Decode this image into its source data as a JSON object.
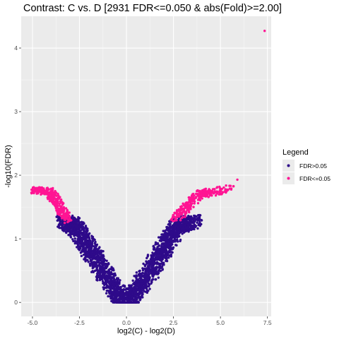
{
  "chart_data": {
    "type": "scatter",
    "title": "Contrast: C vs. D [2931 FDR<=0.050 & abs(Fold)>=2.00]",
    "xlabel": "log2(C) - log2(D)",
    "ylabel": "-log10(FDR)",
    "xlim": [
      -5.6,
      7.7
    ],
    "ylim": [
      -0.22,
      4.5
    ],
    "x_ticks": [
      -5.0,
      -2.5,
      0.0,
      2.5,
      5.0,
      7.5
    ],
    "x_tick_labels": [
      "-5.0",
      "-2.5",
      "0.0",
      "2.5",
      "5.0",
      "7.5"
    ],
    "y_ticks": [
      0,
      1,
      2,
      3,
      4
    ],
    "y_tick_labels": [
      "0",
      "1",
      "2",
      "3",
      "4"
    ],
    "grid": true,
    "legend": {
      "title": "Legend",
      "placement": "right"
    },
    "series": [
      {
        "name": "FDR>0.05",
        "color": "#2e0a8a",
        "shape": "volcano-v",
        "points": [
          [
            -3.3,
            1.27
          ],
          [
            -3.1,
            1.25
          ],
          [
            -2.9,
            1.22
          ],
          [
            -2.6,
            1.15
          ],
          [
            -2.3,
            1.0
          ],
          [
            -2.0,
            0.85
          ],
          [
            -1.7,
            0.72
          ],
          [
            -1.4,
            0.55
          ],
          [
            -1.0,
            0.38
          ],
          [
            -0.6,
            0.2
          ],
          [
            -0.3,
            0.08
          ],
          [
            0.0,
            0.0
          ],
          [
            0.3,
            0.08
          ],
          [
            0.6,
            0.2
          ],
          [
            1.0,
            0.38
          ],
          [
            1.4,
            0.55
          ],
          [
            1.7,
            0.72
          ],
          [
            2.0,
            0.85
          ],
          [
            2.3,
            1.0
          ],
          [
            2.6,
            1.15
          ],
          [
            2.9,
            1.22
          ],
          [
            3.2,
            1.25
          ],
          [
            3.6,
            1.27
          ]
        ]
      },
      {
        "name": "FDR<=0.05",
        "color": "#ff1493",
        "shape": "arms",
        "points": [
          [
            -5.0,
            1.78
          ],
          [
            -4.6,
            1.75
          ],
          [
            -4.2,
            1.74
          ],
          [
            -3.9,
            1.68
          ],
          [
            -3.7,
            1.58
          ],
          [
            -3.5,
            1.47
          ],
          [
            -3.3,
            1.37
          ],
          [
            -3.1,
            1.3
          ],
          [
            2.6,
            1.32
          ],
          [
            2.9,
            1.4
          ],
          [
            3.2,
            1.5
          ],
          [
            3.5,
            1.6
          ],
          [
            3.8,
            1.68
          ],
          [
            4.2,
            1.72
          ],
          [
            4.8,
            1.74
          ],
          [
            5.5,
            1.79
          ],
          [
            5.9,
            1.93
          ],
          [
            7.35,
            4.27
          ]
        ]
      }
    ]
  }
}
